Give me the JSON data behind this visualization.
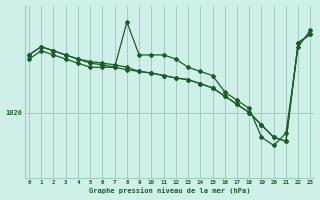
{
  "title": "Graphe pression niveau de la mer (hPa)",
  "background_color": "#cff0e8",
  "grid_color": "#a0ccbb",
  "line_color": "#1a5c2a",
  "marker_color": "#1a5c2a",
  "x_ticks": [
    0,
    1,
    2,
    3,
    4,
    5,
    6,
    7,
    8,
    9,
    10,
    11,
    12,
    13,
    14,
    15,
    16,
    17,
    18,
    19,
    20,
    21,
    22,
    23
  ],
  "ylabel_value": 1020,
  "ylim": [
    1012.0,
    1033.0
  ],
  "series1": [
    1027.0,
    1028.0,
    1027.5,
    1027.0,
    1026.5,
    1026.0,
    1025.8,
    1025.5,
    1025.2,
    1025.0,
    1024.8,
    1024.5,
    1024.2,
    1024.0,
    1023.5,
    1023.0,
    1022.0,
    1021.0,
    1020.0,
    1018.5,
    1017.0,
    1016.5,
    1028.5,
    1029.5
  ],
  "series2": [
    1026.5,
    1027.5,
    1027.0,
    1026.5,
    1026.0,
    1025.5,
    1025.5,
    1025.5,
    1031.0,
    1027.0,
    1027.0,
    1027.0,
    1026.5,
    1025.5,
    1025.0,
    1024.5,
    1022.5,
    1021.5,
    1020.5,
    1017.0,
    1016.0,
    1017.5,
    1028.0,
    1030.0
  ],
  "series3": [
    1027.0,
    1028.0,
    1027.5,
    1027.0,
    1026.5,
    1026.2,
    1026.0,
    1025.8,
    1025.5,
    1025.0,
    1024.8,
    1024.5,
    1024.2,
    1024.0,
    1023.5,
    1023.0,
    1022.0,
    1021.0,
    1020.0,
    1018.5,
    1017.0,
    1016.5,
    1028.5,
    1029.5
  ]
}
